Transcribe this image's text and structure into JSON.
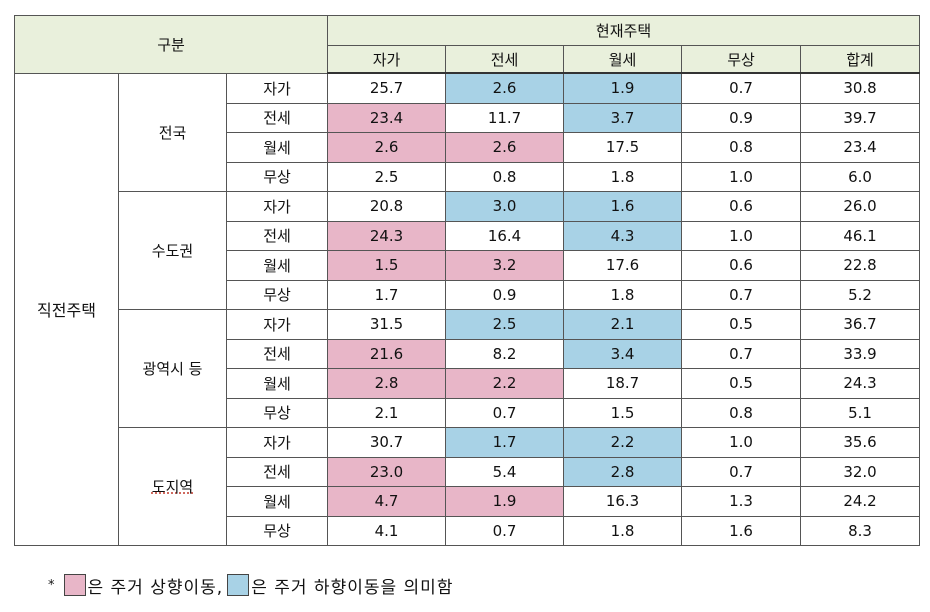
{
  "table": {
    "corner_label": "구분",
    "current_header": "현재주택",
    "columns": [
      "자가",
      "전세",
      "월세",
      "무상",
      "합계"
    ],
    "outer_label": "직전주택",
    "groups": [
      {
        "name": "전국",
        "rows": [
          {
            "type": "자가",
            "values": [
              "25.7",
              "2.6",
              "1.9",
              "0.7",
              "30.8"
            ],
            "hl": [
              "",
              "blue",
              "blue",
              "",
              ""
            ]
          },
          {
            "type": "전세",
            "values": [
              "23.4",
              "11.7",
              "3.7",
              "0.9",
              "39.7"
            ],
            "hl": [
              "pink",
              "",
              "blue",
              "",
              ""
            ]
          },
          {
            "type": "월세",
            "values": [
              "2.6",
              "2.6",
              "17.5",
              "0.8",
              "23.4"
            ],
            "hl": [
              "pink",
              "pink",
              "",
              "",
              ""
            ]
          },
          {
            "type": "무상",
            "values": [
              "2.5",
              "0.8",
              "1.8",
              "1.0",
              "6.0"
            ],
            "hl": [
              "",
              "",
              "",
              "",
              ""
            ]
          }
        ]
      },
      {
        "name": "수도권",
        "rows": [
          {
            "type": "자가",
            "values": [
              "20.8",
              "3.0",
              "1.6",
              "0.6",
              "26.0"
            ],
            "hl": [
              "",
              "blue",
              "blue",
              "",
              ""
            ]
          },
          {
            "type": "전세",
            "values": [
              "24.3",
              "16.4",
              "4.3",
              "1.0",
              "46.1"
            ],
            "hl": [
              "pink",
              "",
              "blue",
              "",
              ""
            ]
          },
          {
            "type": "월세",
            "values": [
              "1.5",
              "3.2",
              "17.6",
              "0.6",
              "22.8"
            ],
            "hl": [
              "pink",
              "pink",
              "",
              "",
              ""
            ]
          },
          {
            "type": "무상",
            "values": [
              "1.7",
              "0.9",
              "1.8",
              "0.7",
              "5.2"
            ],
            "hl": [
              "",
              "",
              "",
              "",
              ""
            ]
          }
        ]
      },
      {
        "name": "광역시 등",
        "rows": [
          {
            "type": "자가",
            "values": [
              "31.5",
              "2.5",
              "2.1",
              "0.5",
              "36.7"
            ],
            "hl": [
              "",
              "blue",
              "blue",
              "",
              ""
            ]
          },
          {
            "type": "전세",
            "values": [
              "21.6",
              "8.2",
              "3.4",
              "0.7",
              "33.9"
            ],
            "hl": [
              "pink",
              "",
              "blue",
              "",
              ""
            ]
          },
          {
            "type": "월세",
            "values": [
              "2.8",
              "2.2",
              "18.7",
              "0.5",
              "24.3"
            ],
            "hl": [
              "pink",
              "pink",
              "",
              "",
              ""
            ]
          },
          {
            "type": "무상",
            "values": [
              "2.1",
              "0.7",
              "1.5",
              "0.8",
              "5.1"
            ],
            "hl": [
              "",
              "",
              "",
              "",
              ""
            ]
          }
        ]
      },
      {
        "name": "도지역",
        "rows": [
          {
            "type": "자가",
            "values": [
              "30.7",
              "1.7",
              "2.2",
              "1.0",
              "35.6"
            ],
            "hl": [
              "",
              "blue",
              "blue",
              "",
              ""
            ]
          },
          {
            "type": "전세",
            "values": [
              "23.0",
              "5.4",
              "2.8",
              "0.7",
              "32.0"
            ],
            "hl": [
              "pink",
              "",
              "blue",
              "",
              ""
            ]
          },
          {
            "type": "월세",
            "values": [
              "4.7",
              "1.9",
              "16.3",
              "1.3",
              "24.2"
            ],
            "hl": [
              "pink",
              "pink",
              "",
              "",
              ""
            ]
          },
          {
            "type": "무상",
            "values": [
              "4.1",
              "0.7",
              "1.8",
              "1.6",
              "8.3"
            ],
            "hl": [
              "",
              "",
              "",
              "",
              ""
            ]
          }
        ]
      }
    ]
  },
  "legend": {
    "marker": "*",
    "upward_text": "은 주거 상향이동,",
    "downward_text": "은 주거 하향이동을 의미함",
    "upward_color": "#e8b6c8",
    "downward_color": "#a8d2e6"
  }
}
